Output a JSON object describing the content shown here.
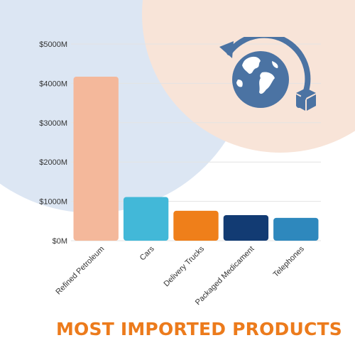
{
  "colors": {
    "bg_blue": "#dce6f3",
    "bg_peach": "#f8e4d8",
    "grid": "#e3e3e3",
    "axis_text": "#333333",
    "title": "#ec7b1c",
    "globe": "#4b73a3"
  },
  "icons": [
    "globe-icon",
    "cycle-arrow-icon",
    "box-icon"
  ],
  "chart_data": {
    "type": "bar",
    "title": "MOST IMPORTED PRODUCTS",
    "xlabel": "",
    "ylabel": "",
    "ylim": [
      0,
      5000
    ],
    "yticks": [
      0,
      1000,
      2000,
      3000,
      4000,
      5000
    ],
    "ytick_labels": [
      "$0M",
      "$1000M",
      "$2000M",
      "$3000M",
      "$4000M",
      "$5000M"
    ],
    "grid": true,
    "legend": "none",
    "categories": [
      "Refined Petroleum",
      "Cars",
      "Delivery Trucks",
      "Packaged Medicament",
      "Telephones"
    ],
    "values": [
      4170,
      1110,
      760,
      650,
      580
    ],
    "bar_colors": [
      "#f4b89b",
      "#42b8d8",
      "#ef7f1a",
      "#123b73",
      "#2e88bd"
    ]
  }
}
